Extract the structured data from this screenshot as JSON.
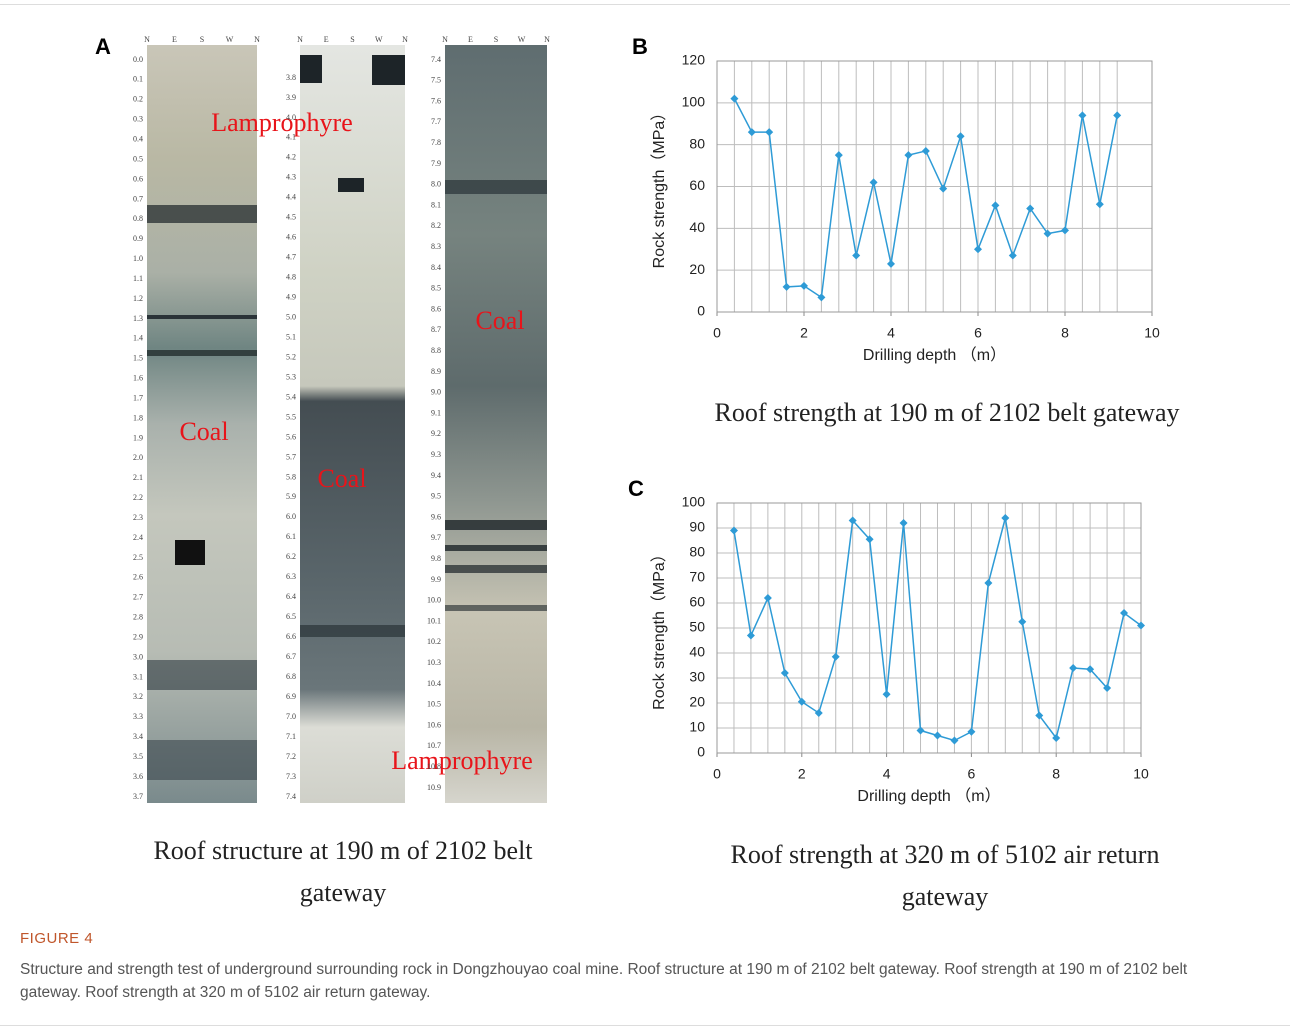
{
  "panel_a": {
    "label": "A",
    "caption": "Roof structure at 190 m of 2102 belt gateway",
    "compass": [
      "N",
      "E",
      "S",
      "W",
      "N"
    ],
    "strips": [
      {
        "depths": [
          "0.0",
          "0.1",
          "0.2",
          "0.3",
          "0.4",
          "0.5",
          "0.6",
          "0.7",
          "0.8",
          "0.9",
          "1.0",
          "1.1",
          "1.2",
          "1.3",
          "1.4",
          "1.5",
          "1.6",
          "1.7",
          "1.8",
          "1.9",
          "2.0",
          "2.1",
          "2.2",
          "2.3",
          "2.4",
          "2.5",
          "2.6",
          "2.7",
          "2.8",
          "2.9",
          "3.0",
          "3.1",
          "3.2",
          "3.3",
          "3.4",
          "3.5",
          "3.6",
          "3.7"
        ]
      },
      {
        "depths": [
          "3.8",
          "3.9",
          "4.0",
          "4.1",
          "4.2",
          "4.3",
          "4.4",
          "4.5",
          "4.6",
          "4.7",
          "4.8",
          "4.9",
          "5.0",
          "5.1",
          "5.2",
          "5.3",
          "5.4",
          "5.5",
          "5.6",
          "5.7",
          "5.8",
          "5.9",
          "6.0",
          "6.1",
          "6.2",
          "6.3",
          "6.4",
          "6.5",
          "6.6",
          "6.7",
          "6.8",
          "6.9",
          "7.0",
          "7.1",
          "7.2",
          "7.3",
          "7.4"
        ]
      },
      {
        "depths": [
          "7.4",
          "7.5",
          "7.6",
          "7.7",
          "7.8",
          "7.9",
          "8.0",
          "8.1",
          "8.2",
          "8.3",
          "8.4",
          "8.5",
          "8.6",
          "8.7",
          "8.8",
          "8.9",
          "9.0",
          "9.1",
          "9.2",
          "9.3",
          "9.4",
          "9.5",
          "9.6",
          "9.7",
          "9.8",
          "9.9",
          "10.0",
          "10.1",
          "10.2",
          "10.3",
          "10.4",
          "10.5",
          "10.6",
          "10.7",
          "10.8",
          "10.9"
        ]
      }
    ],
    "annotations": [
      "Lamprophyre",
      "Coal",
      "Coal",
      "Coal",
      "Lamprophyre"
    ]
  },
  "chart_data": [
    {
      "type": "line",
      "label": "B",
      "caption": "Roof strength at 190 m of 2102 belt gateway",
      "xlabel": "Drilling depth （m）",
      "ylabel": "Rock strength（MPa）",
      "x": [
        0.4,
        0.8,
        1.2,
        1.6,
        2.0,
        2.4,
        2.8,
        3.2,
        3.6,
        4.0,
        4.4,
        4.8,
        5.2,
        5.6,
        6.0,
        6.4,
        6.8,
        7.2,
        7.6,
        8.0,
        8.4,
        8.8,
        9.2
      ],
      "values": [
        102,
        86,
        86,
        12,
        12.5,
        7,
        75,
        27,
        62,
        23,
        75,
        77,
        59,
        84,
        30,
        51,
        27,
        49.5,
        37.5,
        39,
        94,
        51.5,
        94
      ],
      "color": "#2e9bd6",
      "xlim": [
        0,
        10
      ],
      "xticks": [
        0,
        2,
        4,
        6,
        8,
        10
      ],
      "ylim": [
        0,
        120
      ],
      "yticks": [
        0,
        20,
        40,
        60,
        80,
        100,
        120
      ],
      "grid": true
    },
    {
      "type": "line",
      "label": "C",
      "caption": "Roof strength at 320 m of 5102 air return gateway",
      "xlabel": "Drilling depth （m）",
      "ylabel": "Rock strength（MPa）",
      "x": [
        0.4,
        0.8,
        1.2,
        1.6,
        2.0,
        2.4,
        2.8,
        3.2,
        3.6,
        4.0,
        4.4,
        4.8,
        5.2,
        5.6,
        6.0,
        6.4,
        6.8,
        7.2,
        7.6,
        8.0,
        8.4,
        8.8,
        9.2,
        9.6,
        10
      ],
      "values": [
        89,
        47,
        62,
        32,
        20.5,
        16,
        38.5,
        93,
        85.5,
        23.5,
        92,
        9,
        7,
        5,
        8.5,
        68,
        94,
        52.5,
        15,
        6,
        34,
        33.5,
        26,
        56,
        51
      ],
      "color": "#2e9bd6",
      "xlim": [
        0,
        10
      ],
      "xticks": [
        0,
        2,
        4,
        6,
        8,
        10
      ],
      "ylim": [
        0,
        100
      ],
      "yticks": [
        0,
        10,
        20,
        30,
        40,
        50,
        60,
        70,
        80,
        90,
        100
      ],
      "grid": true
    }
  ],
  "figure": {
    "label": "FIGURE 4",
    "caption": "Structure and strength test of underground surrounding rock in Dongzhouyao coal mine. Roof structure at 190 m of 2102 belt gateway. Roof strength at 190 m of 2102 belt gateway. Roof strength at 320 m of 5102 air return gateway."
  }
}
